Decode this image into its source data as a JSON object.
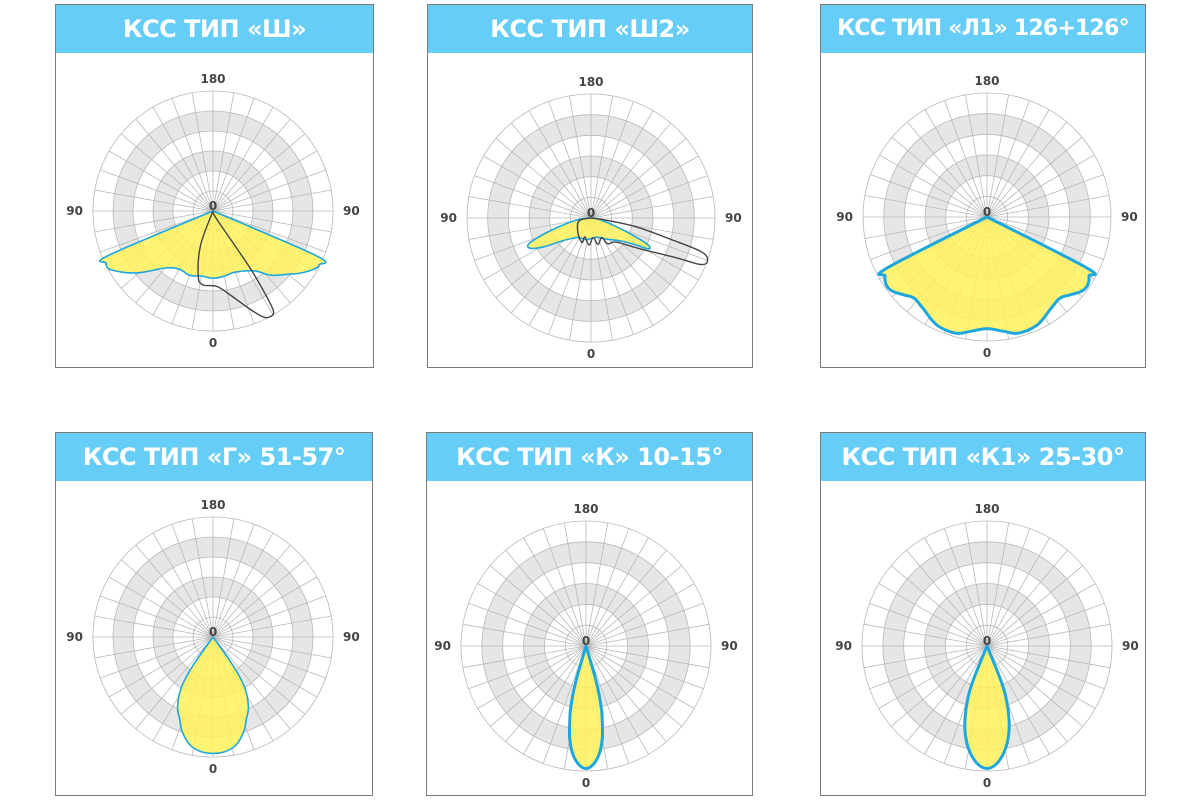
{
  "chart_data": [
    {
      "type": "polar",
      "title": "КСС ТИП «Ш»",
      "angle_labels": {
        "top": "180",
        "left": "90",
        "right": "90",
        "bottom": "0",
        "center": "0"
      },
      "grid": {
        "rings": 6,
        "spoke_step_deg": 10
      },
      "series": [
        {
          "name": "fill",
          "style": "yellow",
          "points": [
            [
              0,
              0
            ],
            [
              -67,
              0.94
            ],
            [
              -64,
              0.99
            ],
            [
              -60,
              0.98
            ],
            [
              -51,
              0.82
            ],
            [
              -40,
              0.62
            ],
            [
              -30,
              0.56
            ],
            [
              -20,
              0.57
            ],
            [
              -10,
              0.55
            ],
            [
              0,
              0.56
            ],
            [
              10,
              0.55
            ],
            [
              18,
              0.54
            ],
            [
              29,
              0.57
            ],
            [
              36,
              0.62
            ],
            [
              42,
              0.72
            ],
            [
              50,
              0.82
            ],
            [
              55,
              0.9
            ],
            [
              60,
              0.97
            ],
            [
              63,
              0.99
            ],
            [
              66.6,
              0.94
            ],
            [
              0,
              0
            ]
          ]
        },
        {
          "name": "line",
          "style": "dark",
          "points": [
            [
              0,
              0
            ],
            [
              -20,
              0.3
            ],
            [
              -13,
              0.55
            ],
            [
              -8,
              0.62
            ],
            [
              3,
              0.63
            ],
            [
              12,
              0.72
            ],
            [
              20,
              0.86
            ],
            [
              25,
              0.97
            ],
            [
              28,
              1.0
            ],
            [
              31,
              0.98
            ],
            [
              32,
              0.85
            ],
            [
              33,
              0.6
            ],
            [
              32,
              0.3
            ],
            [
              20,
              0.05
            ],
            [
              0,
              0
            ]
          ]
        }
      ]
    },
    {
      "type": "polar",
      "title": "КСС ТИП «Ш2»",
      "angle_labels": {
        "top": "180",
        "left": "90",
        "right": "90",
        "bottom": "0",
        "center": "0"
      },
      "grid": {
        "rings": 6,
        "spoke_step_deg": 10
      },
      "series": [
        {
          "name": "fill",
          "style": "yellow",
          "points": [
            [
              -89,
              0.02
            ],
            [
              -82,
              0.12
            ],
            [
              -74,
              0.29
            ],
            [
              -70,
              0.45
            ],
            [
              -67,
              0.55
            ],
            [
              -63,
              0.54
            ],
            [
              -58,
              0.43
            ],
            [
              -51,
              0.29
            ],
            [
              -34,
              0.19
            ],
            [
              -13,
              0.18
            ],
            [
              15,
              0.16
            ],
            [
              36,
              0.21
            ],
            [
              53,
              0.31
            ],
            [
              59,
              0.42
            ],
            [
              62,
              0.53
            ],
            [
              65,
              0.5
            ],
            [
              68,
              0.35
            ],
            [
              72,
              0.19
            ],
            [
              79,
              0.08
            ],
            [
              89,
              0.02
            ]
          ]
        },
        {
          "name": "line",
          "style": "dark",
          "points": [
            [
              0,
              0
            ],
            [
              -76,
              0.1
            ],
            [
              -41,
              0.16
            ],
            [
              -20,
              0.21
            ],
            [
              -18,
              0.16
            ],
            [
              -4,
              0.22
            ],
            [
              6,
              0.16
            ],
            [
              15,
              0.22
            ],
            [
              29,
              0.18
            ],
            [
              33,
              0.25
            ],
            [
              46,
              0.28
            ],
            [
              58,
              0.47
            ],
            [
              65,
              0.76
            ],
            [
              67,
              0.96
            ],
            [
              70,
              1.0
            ],
            [
              73,
              0.93
            ],
            [
              75,
              0.67
            ],
            [
              79,
              0.37
            ],
            [
              82,
              0.12
            ],
            [
              0,
              0
            ]
          ]
        }
      ]
    },
    {
      "type": "polar",
      "title": "КСС ТИП «Л1» 126+126°",
      "angle_labels": {
        "top": "180",
        "left": "90",
        "right": "90",
        "bottom": "0",
        "center": "0"
      },
      "grid": {
        "rings": 6,
        "spoke_step_deg": 10
      },
      "series": [
        {
          "name": "fill",
          "style": "yellow-bold",
          "points": [
            [
              0,
              0
            ],
            [
              -63,
              0.9
            ],
            [
              -60,
              0.95
            ],
            [
              -56,
              0.98
            ],
            [
              -52,
              0.97
            ],
            [
              -47,
              0.92
            ],
            [
              -42,
              0.88
            ],
            [
              -35,
              0.9
            ],
            [
              -25,
              0.96
            ],
            [
              -15,
              0.97
            ],
            [
              -8,
              0.93
            ],
            [
              0,
              0.9
            ],
            [
              8,
              0.93
            ],
            [
              15,
              0.97
            ],
            [
              25,
              0.96
            ],
            [
              35,
              0.9
            ],
            [
              42,
              0.88
            ],
            [
              47,
              0.92
            ],
            [
              52,
              0.97
            ],
            [
              56,
              0.98
            ],
            [
              60,
              0.95
            ],
            [
              63,
              0.9
            ],
            [
              0,
              0
            ]
          ]
        }
      ]
    },
    {
      "type": "polar",
      "title": "КСС ТИП «Г» 51-57°",
      "angle_labels": {
        "top": "180",
        "left": "90",
        "right": "90",
        "bottom": "0",
        "center": "0"
      },
      "grid": {
        "rings": 6,
        "spoke_step_deg": 10
      },
      "series": [
        {
          "name": "fill",
          "style": "yellow",
          "points": [
            [
              0,
              0
            ],
            [
              -35,
              0.3
            ],
            [
              -32,
              0.5
            ],
            [
              -27,
              0.65
            ],
            [
              -22,
              0.74
            ],
            [
              -18,
              0.83
            ],
            [
              -12,
              0.92
            ],
            [
              -6,
              0.96
            ],
            [
              0,
              0.97
            ],
            [
              6,
              0.96
            ],
            [
              12,
              0.92
            ],
            [
              18,
              0.83
            ],
            [
              22,
              0.74
            ],
            [
              27,
              0.65
            ],
            [
              32,
              0.5
            ],
            [
              35,
              0.3
            ],
            [
              0,
              0
            ]
          ]
        }
      ]
    },
    {
      "type": "polar",
      "title": "КСС ТИП «К» 10-15°",
      "angle_labels": {
        "top": "180",
        "left": "90",
        "right": "90",
        "bottom": "0",
        "center": "0"
      },
      "grid": {
        "rings": 6,
        "spoke_step_deg": 10
      },
      "series": [
        {
          "name": "fill",
          "style": "yellow-bold",
          "points": [
            [
              0,
              0
            ],
            [
              -16,
              0.3
            ],
            [
              -14,
              0.5
            ],
            [
              -12.5,
              0.6
            ],
            [
              -10,
              0.75
            ],
            [
              -7,
              0.87
            ],
            [
              -3.5,
              0.95
            ],
            [
              0,
              0.98
            ],
            [
              3.5,
              0.95
            ],
            [
              7,
              0.87
            ],
            [
              10,
              0.75
            ],
            [
              12.5,
              0.6
            ],
            [
              14,
              0.5
            ],
            [
              16,
              0.3
            ],
            [
              0,
              0
            ]
          ]
        }
      ]
    },
    {
      "type": "polar",
      "title": "КСС ТИП «К1» 25-30°",
      "angle_labels": {
        "top": "180",
        "left": "90",
        "right": "90",
        "bottom": "0",
        "center": "0"
      },
      "grid": {
        "rings": 6,
        "spoke_step_deg": 10
      },
      "series": [
        {
          "name": "fill",
          "style": "yellow-bold",
          "points": [
            [
              0,
              0
            ],
            [
              -22,
              0.3
            ],
            [
              -20,
              0.45
            ],
            [
              -17,
              0.6
            ],
            [
              -14,
              0.72
            ],
            [
              -10,
              0.84
            ],
            [
              -5,
              0.94
            ],
            [
              0,
              0.98
            ],
            [
              5,
              0.94
            ],
            [
              10,
              0.84
            ],
            [
              14,
              0.72
            ],
            [
              17,
              0.6
            ],
            [
              20,
              0.45
            ],
            [
              22,
              0.3
            ],
            [
              0,
              0
            ]
          ]
        }
      ]
    }
  ],
  "colors": {
    "header": "#66cdf6",
    "fill": "#fff15c",
    "outline": "#1ea7dc",
    "dark_line": "#444444",
    "band": "#e6e6e6",
    "grid": "#b9b9b9"
  }
}
